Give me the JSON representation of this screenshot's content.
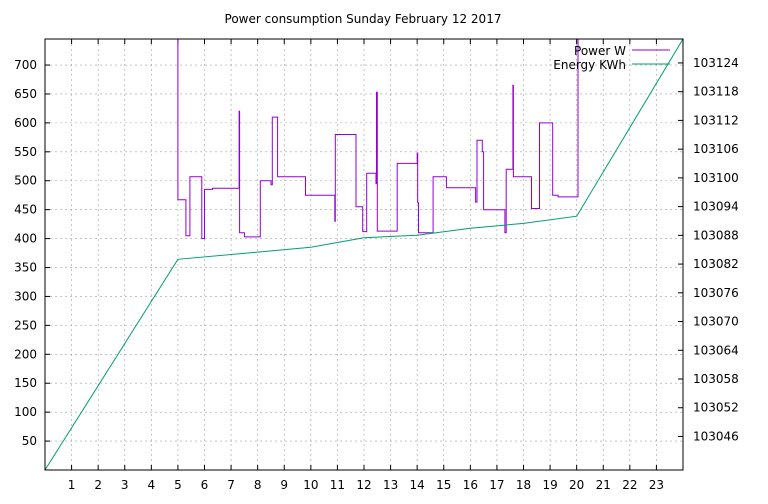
{
  "chart_data": {
    "type": "line",
    "title": "Power consumption Sunday February 12 2017",
    "xlabel": "",
    "ylabel": "",
    "x_ticks": [
      1,
      2,
      3,
      4,
      5,
      6,
      7,
      8,
      9,
      10,
      11,
      12,
      13,
      14,
      15,
      16,
      17,
      18,
      19,
      20,
      21,
      22,
      23
    ],
    "xlim": [
      0,
      24
    ],
    "ylim_left": [
      0,
      745
    ],
    "ylim_right": [
      103039,
      103129
    ],
    "y_ticks_left": [
      50,
      100,
      150,
      200,
      250,
      300,
      350,
      400,
      450,
      500,
      550,
      600,
      650,
      700
    ],
    "y_ticks_right": [
      103046,
      103052,
      103058,
      103064,
      103070,
      103076,
      103082,
      103088,
      103094,
      103100,
      103106,
      103112,
      103118,
      103124
    ],
    "grid": true,
    "legend_position": "top-right",
    "colors": {
      "power": "#9400d3",
      "energy": "#009e73"
    },
    "series": [
      {
        "name": "Power W",
        "axis": "left",
        "style": "step",
        "points": [
          [
            5.0,
            745
          ],
          [
            5.0,
            467
          ],
          [
            5.3,
            467
          ],
          [
            5.3,
            405
          ],
          [
            5.45,
            405
          ],
          [
            5.45,
            507
          ],
          [
            5.9,
            507
          ],
          [
            5.9,
            400
          ],
          [
            6.0,
            400
          ],
          [
            6.0,
            485
          ],
          [
            6.3,
            485
          ],
          [
            6.3,
            487
          ],
          [
            7.3,
            487
          ],
          [
            7.3,
            620
          ],
          [
            7.32,
            620
          ],
          [
            7.32,
            410
          ],
          [
            7.5,
            410
          ],
          [
            7.5,
            403
          ],
          [
            8.1,
            403
          ],
          [
            8.1,
            500
          ],
          [
            8.5,
            500
          ],
          [
            8.5,
            493
          ],
          [
            8.55,
            493
          ],
          [
            8.55,
            610
          ],
          [
            8.75,
            610
          ],
          [
            8.75,
            507
          ],
          [
            9.8,
            507
          ],
          [
            9.8,
            475
          ],
          [
            10.9,
            475
          ],
          [
            10.9,
            430
          ],
          [
            10.92,
            430
          ],
          [
            10.92,
            580
          ],
          [
            11.7,
            580
          ],
          [
            11.7,
            455
          ],
          [
            11.95,
            455
          ],
          [
            11.95,
            412
          ],
          [
            12.1,
            412
          ],
          [
            12.1,
            513
          ],
          [
            12.45,
            513
          ],
          [
            12.45,
            495
          ],
          [
            12.47,
            495
          ],
          [
            12.47,
            653
          ],
          [
            12.5,
            653
          ],
          [
            12.5,
            413
          ],
          [
            13.25,
            413
          ],
          [
            13.25,
            530
          ],
          [
            14.0,
            530
          ],
          [
            14.0,
            548
          ],
          [
            14.02,
            548
          ],
          [
            14.02,
            462
          ],
          [
            14.05,
            462
          ],
          [
            14.05,
            410
          ],
          [
            14.6,
            410
          ],
          [
            14.6,
            507
          ],
          [
            15.1,
            507
          ],
          [
            15.1,
            488
          ],
          [
            16.2,
            488
          ],
          [
            16.2,
            463
          ],
          [
            16.25,
            463
          ],
          [
            16.25,
            570
          ],
          [
            16.45,
            570
          ],
          [
            16.45,
            550
          ],
          [
            16.5,
            550
          ],
          [
            16.5,
            450
          ],
          [
            17.3,
            450
          ],
          [
            17.3,
            410
          ],
          [
            17.35,
            410
          ],
          [
            17.35,
            520
          ],
          [
            17.6,
            520
          ],
          [
            17.6,
            665
          ],
          [
            17.62,
            665
          ],
          [
            17.62,
            507
          ],
          [
            18.3,
            507
          ],
          [
            18.3,
            452
          ],
          [
            18.6,
            452
          ],
          [
            18.6,
            600
          ],
          [
            19.1,
            600
          ],
          [
            19.1,
            475
          ],
          [
            19.3,
            475
          ],
          [
            19.3,
            472
          ],
          [
            20.05,
            472
          ],
          [
            20.05,
            745
          ]
        ]
      },
      {
        "name": "Energy KWh",
        "axis": "right",
        "style": "line",
        "points": [
          [
            0,
            103039
          ],
          [
            5.0,
            103083
          ],
          [
            8.0,
            103084.5
          ],
          [
            10.0,
            103085.5
          ],
          [
            12.0,
            103087.5
          ],
          [
            14.0,
            103088
          ],
          [
            16.0,
            103089.5
          ],
          [
            18.0,
            103090.5
          ],
          [
            20.0,
            103092
          ],
          [
            24.0,
            103129
          ]
        ]
      }
    ]
  }
}
